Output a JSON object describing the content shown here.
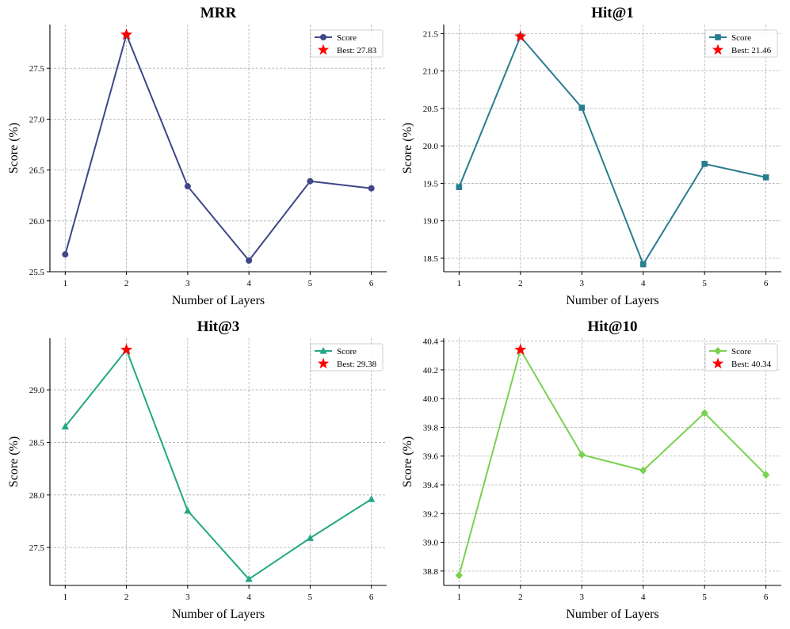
{
  "chart_data": [
    {
      "type": "line",
      "title": "MRR",
      "xlabel": "Number of Layers",
      "ylabel": "Score (%)",
      "x": [
        1,
        2,
        3,
        4,
        5,
        6
      ],
      "values": [
        25.67,
        27.83,
        26.34,
        25.61,
        26.39,
        26.32
      ],
      "ylim": [
        25.5,
        27.93
      ],
      "yticks": [
        25.5,
        26.0,
        26.5,
        27.0,
        27.5
      ],
      "ytick_labels": [
        "25.5",
        "26.0",
        "26.5",
        "27.0",
        "27.5"
      ],
      "series_name": "Score",
      "marker": "circle",
      "color": "#3f4788",
      "best": {
        "x": 2,
        "value": 27.83,
        "label": "Best: 27.83"
      },
      "legend_position": "top-right",
      "grid": true
    },
    {
      "type": "line",
      "title": "Hit@1",
      "xlabel": "Number of Layers",
      "ylabel": "Score (%)",
      "x": [
        1,
        2,
        3,
        4,
        5,
        6
      ],
      "values": [
        19.45,
        21.46,
        20.51,
        18.42,
        19.76,
        19.58
      ],
      "ylim": [
        18.32,
        21.62
      ],
      "yticks": [
        18.5,
        19.0,
        19.5,
        20.0,
        20.5,
        21.0,
        21.5
      ],
      "ytick_labels": [
        "18.5",
        "19.0",
        "19.5",
        "20.0",
        "20.5",
        "21.0",
        "21.5"
      ],
      "series_name": "Score",
      "marker": "square",
      "color": "#287d8e",
      "best": {
        "x": 2,
        "value": 21.46,
        "label": "Best: 21.46"
      },
      "legend_position": "top-right",
      "grid": true
    },
    {
      "type": "line",
      "title": "Hit@3",
      "xlabel": "Number of Layers",
      "ylabel": "Score (%)",
      "x": [
        1,
        2,
        3,
        4,
        5,
        6
      ],
      "values": [
        28.65,
        29.38,
        27.85,
        27.2,
        27.59,
        27.96
      ],
      "ylim": [
        27.14,
        29.49
      ],
      "yticks": [
        27.5,
        28.0,
        28.5,
        29.0
      ],
      "ytick_labels": [
        "27.5",
        "28.0",
        "28.5",
        "29.0"
      ],
      "series_name": "Score",
      "marker": "triangle",
      "color": "#22a884",
      "best": {
        "x": 2,
        "value": 29.38,
        "label": "Best: 29.38"
      },
      "legend_position": "top-right",
      "grid": true
    },
    {
      "type": "line",
      "title": "Hit@10",
      "xlabel": "Number of Layers",
      "ylabel": "Score (%)",
      "x": [
        1,
        2,
        3,
        4,
        5,
        6
      ],
      "values": [
        38.77,
        40.34,
        39.61,
        39.5,
        39.9,
        39.47
      ],
      "ylim": [
        38.7,
        40.42
      ],
      "yticks": [
        38.8,
        39.0,
        39.2,
        39.4,
        39.6,
        39.8,
        40.0,
        40.2,
        40.4
      ],
      "ytick_labels": [
        "38.8",
        "39.0",
        "39.2",
        "39.4",
        "39.6",
        "39.8",
        "40.0",
        "40.2",
        "40.4"
      ],
      "series_name": "Score",
      "marker": "diamond",
      "color": "#7ad151",
      "best": {
        "x": 2,
        "value": 40.34,
        "label": "Best: 40.34"
      },
      "legend_position": "top-right",
      "grid": true
    }
  ],
  "colors": {
    "best_marker": "#ff0000",
    "grid": "#b0b0b0",
    "axis": "#000000"
  }
}
